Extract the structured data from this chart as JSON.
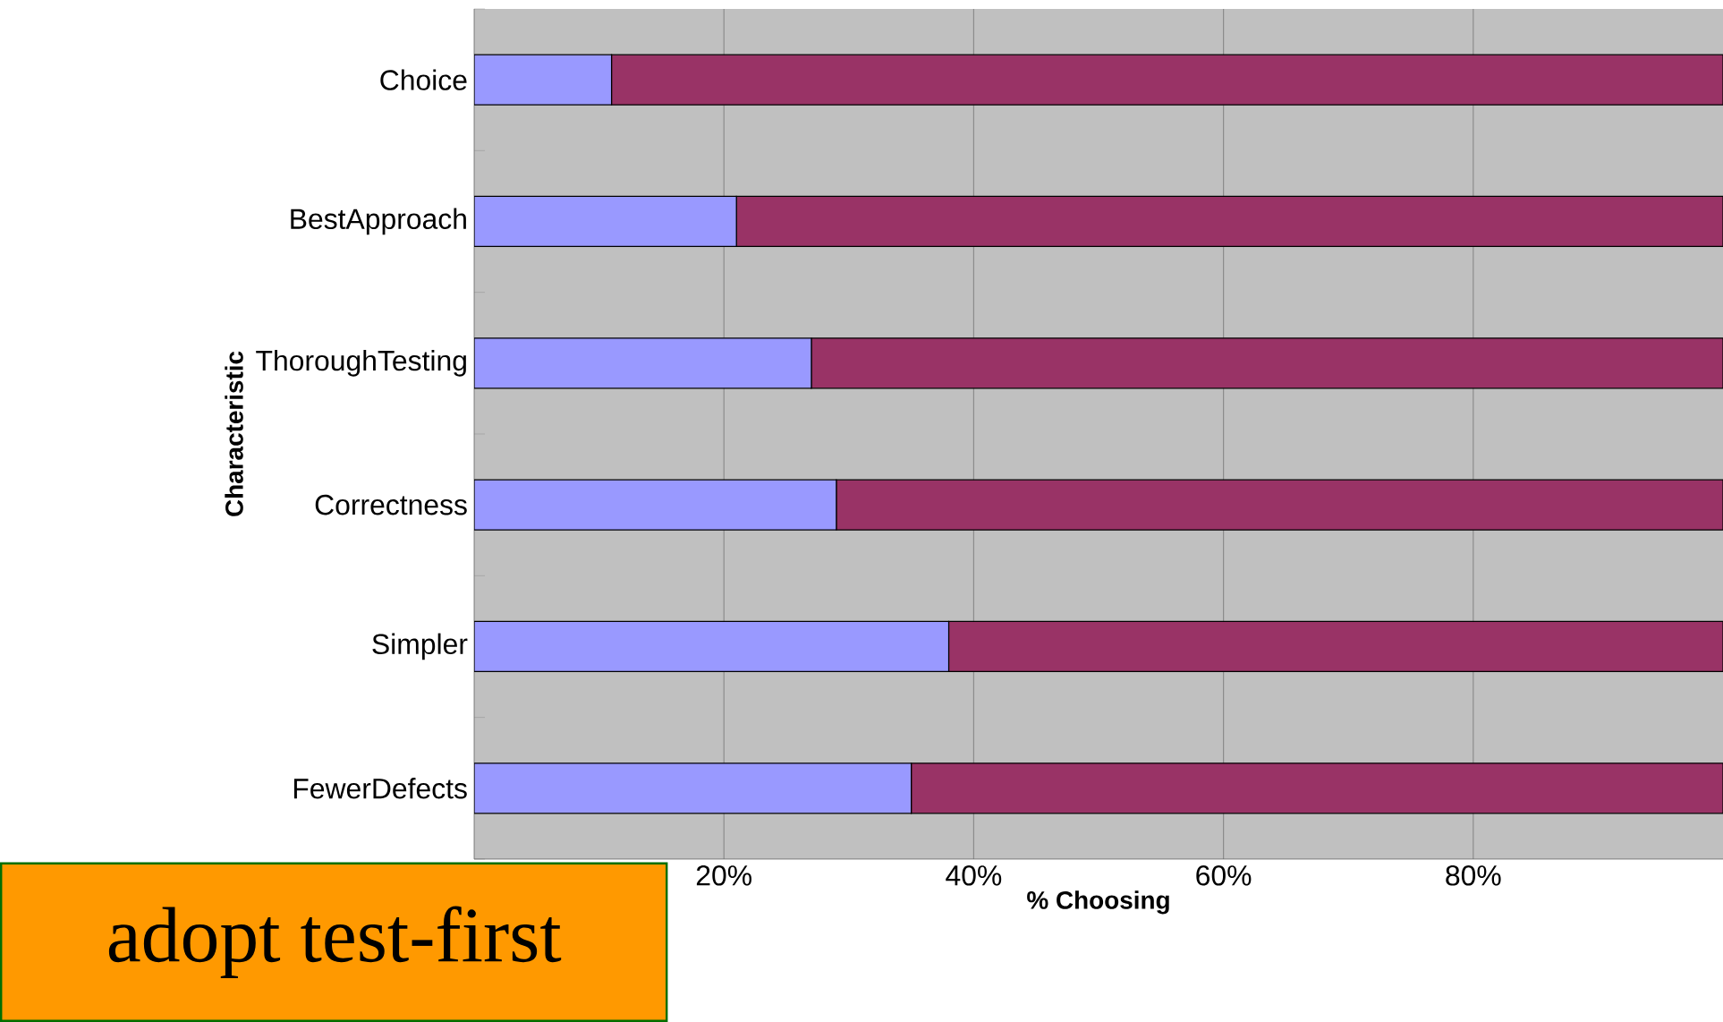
{
  "chart_data": {
    "type": "bar",
    "orientation": "horizontal",
    "stacked": true,
    "xlabel": "% Choosing",
    "ylabel": "Characteristic",
    "categories": [
      "Choice",
      "BestApproach",
      "ThoroughTesting",
      "Correctness",
      "Simpler",
      "FewerDefects"
    ],
    "series": [
      {
        "color": "#9999ff",
        "values": [
          11,
          21,
          27,
          29,
          38,
          35
        ]
      },
      {
        "color": "#993366",
        "values": [
          89,
          79,
          73,
          71,
          62,
          65
        ]
      }
    ],
    "xlim": [
      0,
      100
    ],
    "xticks": [
      {
        "value": 20,
        "label": "20%"
      },
      {
        "value": 40,
        "label": "40%"
      },
      {
        "value": 60,
        "label": "60%"
      },
      {
        "value": 80,
        "label": "80%"
      }
    ],
    "grid": "x",
    "annotations": [
      "adopt test-first"
    ]
  }
}
